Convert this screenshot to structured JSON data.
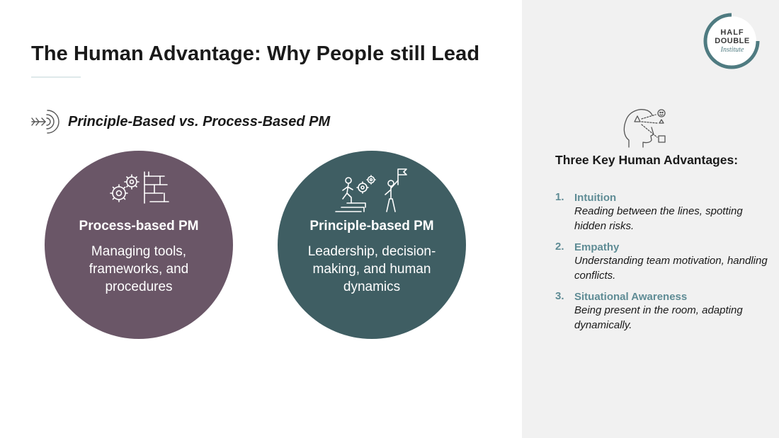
{
  "title": "The Human Advantage: Why People still Lead",
  "subtitle": "Principle-Based vs. Process-Based PM",
  "icons": {
    "subtitle": "arrow-target-icon",
    "process": "gears-and-flow-icon",
    "principle": "climbing-to-goal-icon",
    "head": "head-with-shapes-icon"
  },
  "colors": {
    "process_circle": "#6a5667",
    "principle_circle": "#3f5e63",
    "accent": "#5f8c95",
    "side_panel": "#f1f1f1"
  },
  "process": {
    "heading": "Process-based PM",
    "body": "Managing tools, frameworks, and procedures"
  },
  "principle": {
    "heading": "Principle-based PM",
    "body": "Leadership, decision-making, and human dynamics"
  },
  "logo": {
    "line1": "HALF",
    "line2": "DOUBLE",
    "line3": "Institute"
  },
  "panel": {
    "heading": "Three Key Human Advantages:",
    "items": [
      {
        "num": "1.",
        "title": "Intuition",
        "desc": "Reading between the lines, spotting hidden risks."
      },
      {
        "num": "2.",
        "title": "Empathy",
        "desc": "Understanding team motivation, handling conflicts."
      },
      {
        "num": "3.",
        "title": "Situational Awareness",
        "desc": "Being present in the room, adapting dynamically."
      }
    ]
  }
}
